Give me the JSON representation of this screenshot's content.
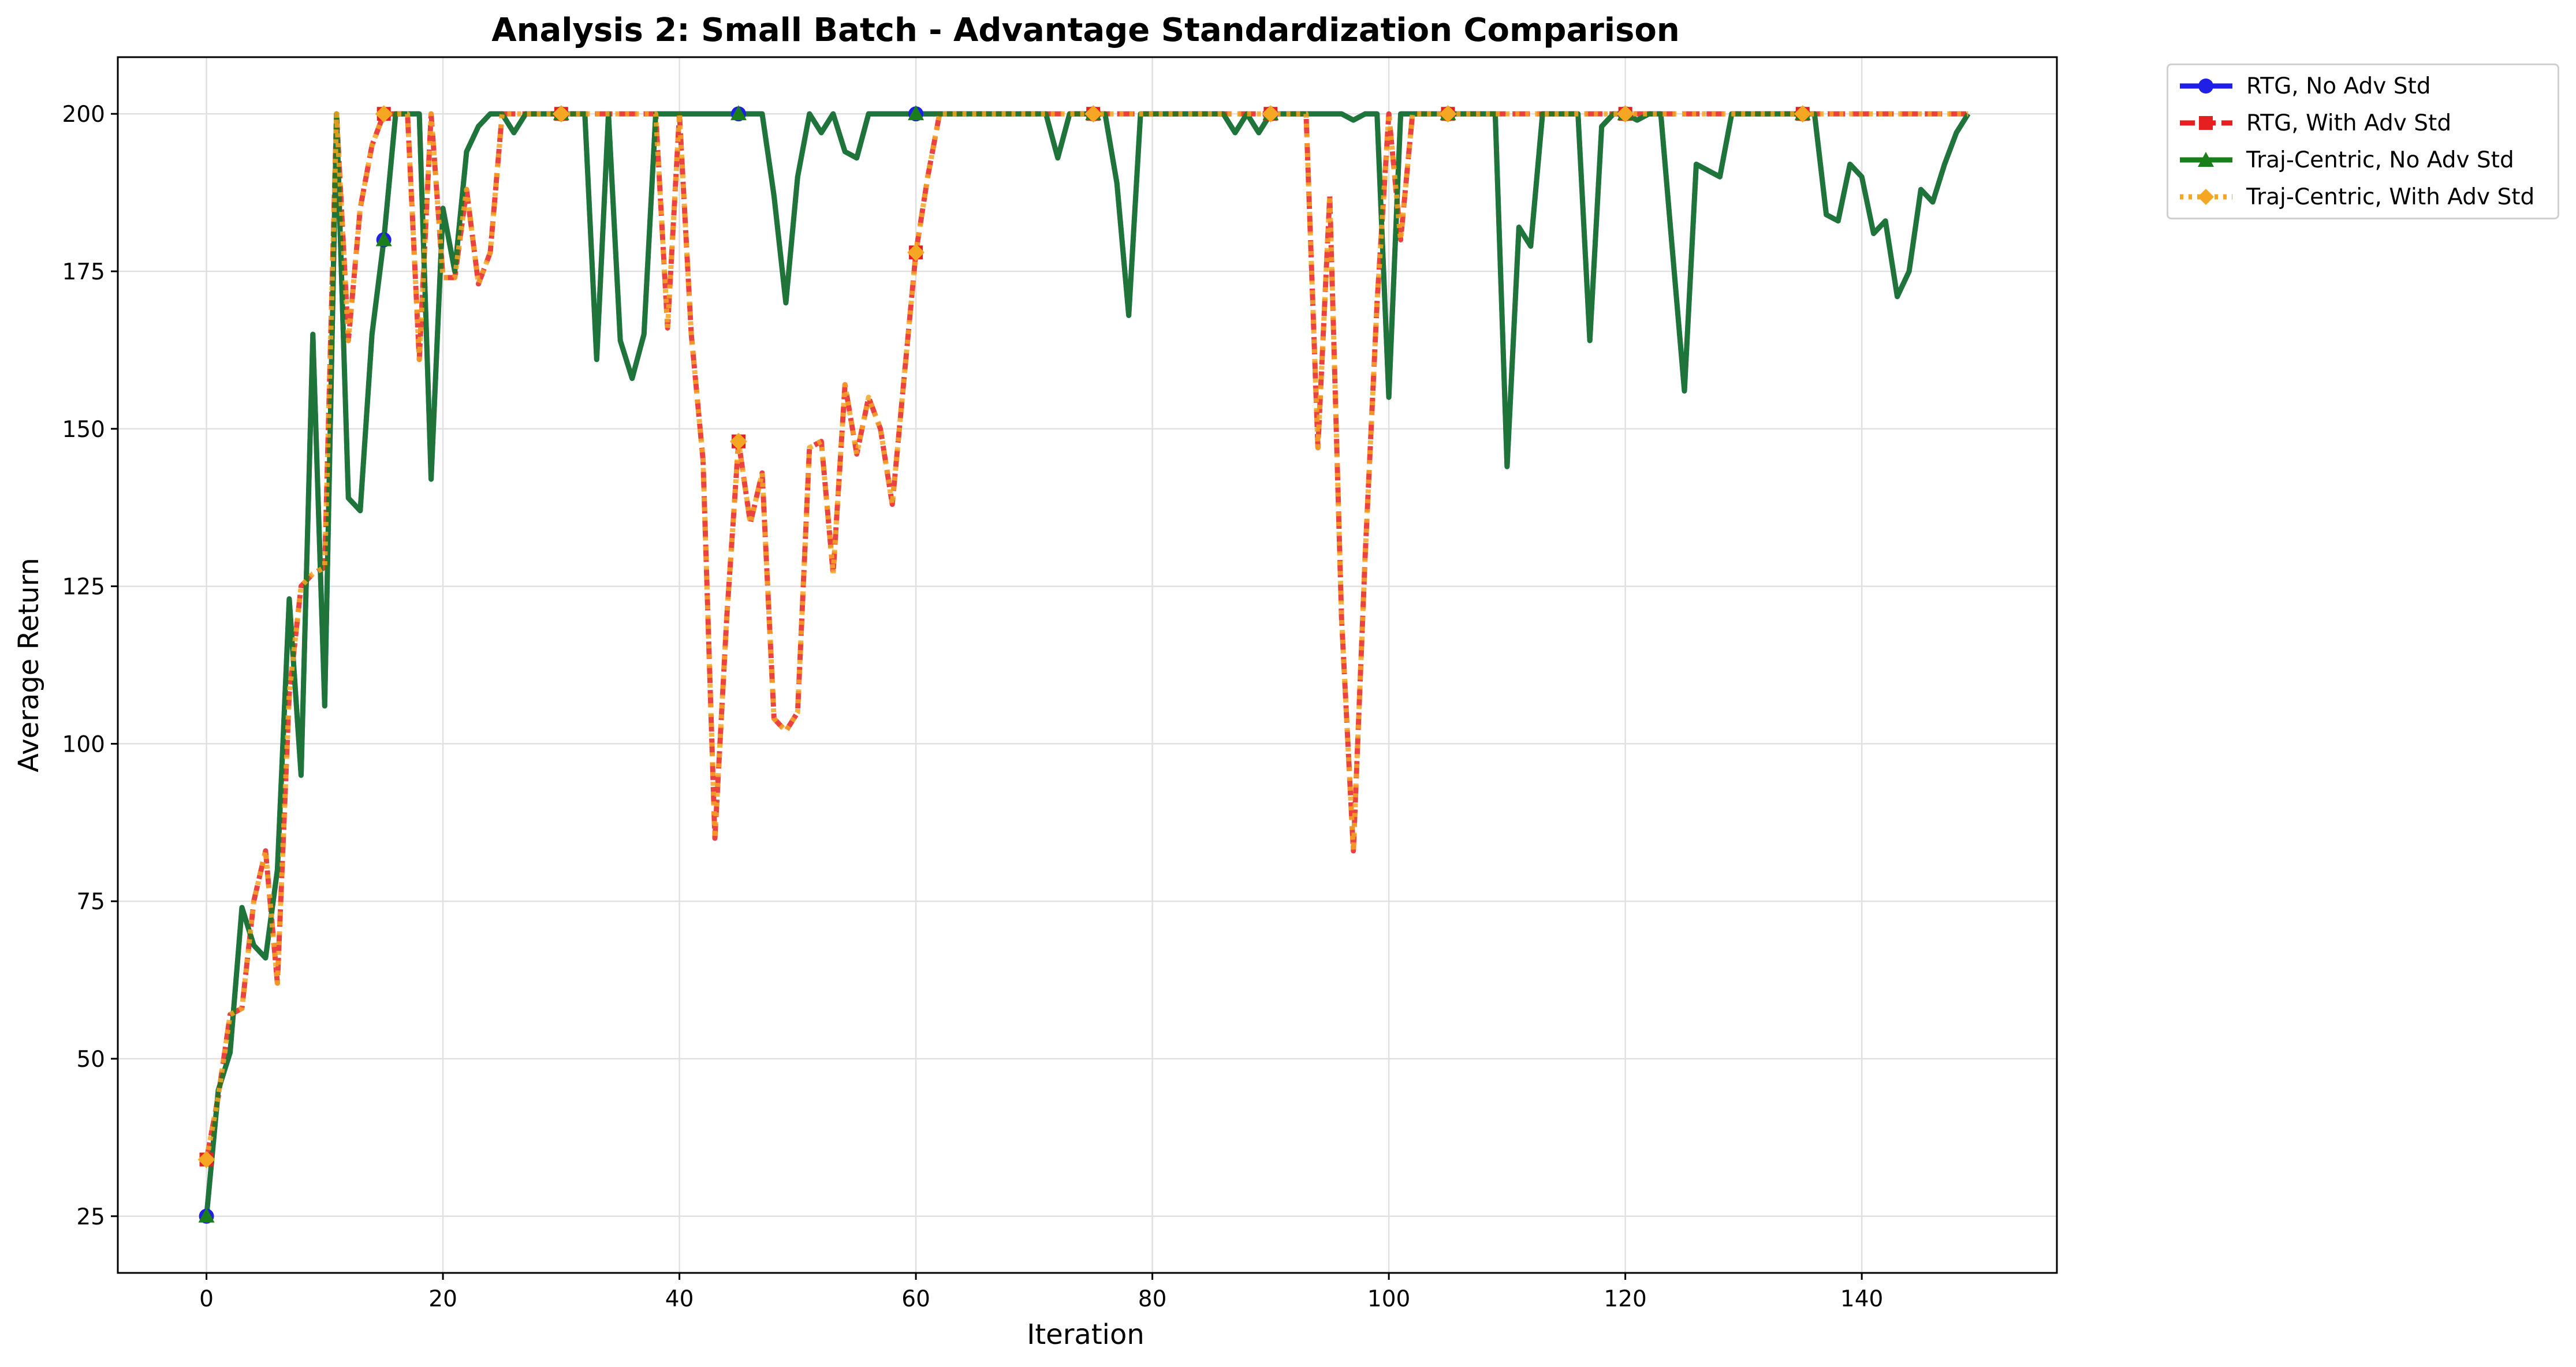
{
  "chart_data": {
    "type": "line",
    "title": "Analysis 2: Small Batch - Advantage Standardization Comparison",
    "xlabel": "Iteration",
    "ylabel": "Average Return",
    "xlim": [
      -7.5,
      156.5
    ],
    "ylim": [
      16,
      209
    ],
    "xticks": [
      0,
      20,
      40,
      60,
      80,
      100,
      120,
      140
    ],
    "yticks": [
      25,
      50,
      75,
      100,
      125,
      150,
      175,
      200
    ],
    "grid": true,
    "legend_position": "outside-top-right",
    "x": [
      0,
      1,
      2,
      3,
      4,
      5,
      6,
      7,
      8,
      9,
      10,
      11,
      12,
      13,
      14,
      15,
      16,
      17,
      18,
      19,
      20,
      21,
      22,
      23,
      24,
      25,
      26,
      27,
      28,
      29,
      30,
      31,
      32,
      33,
      34,
      35,
      36,
      37,
      38,
      39,
      40,
      41,
      42,
      43,
      44,
      45,
      46,
      47,
      48,
      49,
      50,
      51,
      52,
      53,
      54,
      55,
      56,
      57,
      58,
      59,
      60,
      61,
      62,
      63,
      64,
      65,
      66,
      67,
      68,
      69,
      70,
      71,
      72,
      73,
      74,
      75,
      76,
      77,
      78,
      79,
      80,
      81,
      82,
      83,
      84,
      85,
      86,
      87,
      88,
      89,
      90,
      91,
      92,
      93,
      94,
      95,
      96,
      97,
      98,
      99,
      100,
      101,
      102,
      103,
      104,
      105,
      106,
      107,
      108,
      109,
      110,
      111,
      112,
      113,
      114,
      115,
      116,
      117,
      118,
      119,
      120,
      121,
      122,
      123,
      124,
      125,
      126,
      127,
      128,
      129,
      130,
      131,
      132,
      133,
      134,
      135,
      136,
      137,
      138,
      139,
      140,
      141,
      142,
      143,
      144,
      145,
      146,
      147,
      148,
      149
    ],
    "series": [
      {
        "name": "RTG, No Adv Std",
        "color": "#1f1fe6",
        "marker": "circle",
        "linestyle": "solid",
        "values": [
          25,
          45,
          51,
          74,
          68,
          66,
          80,
          123,
          95,
          165,
          106,
          200,
          139,
          137,
          165,
          180,
          200,
          200,
          200,
          142,
          185,
          175,
          194,
          198,
          200,
          200,
          197,
          200,
          200,
          200,
          200,
          200,
          200,
          161,
          200,
          164,
          158,
          165,
          200,
          200,
          200,
          200,
          200,
          200,
          200,
          200,
          200,
          200,
          187,
          170,
          190,
          200,
          197,
          200,
          194,
          193,
          200,
          200,
          200,
          200,
          200,
          200,
          200,
          200,
          200,
          200,
          200,
          200,
          200,
          200,
          200,
          200,
          193,
          200,
          200,
          200,
          200,
          189,
          168,
          200,
          200,
          200,
          200,
          200,
          200,
          200,
          200,
          197,
          200,
          197,
          200,
          200,
          200,
          200,
          200,
          200,
          200,
          199,
          200,
          200,
          155,
          200,
          200,
          200,
          200,
          200,
          200,
          200,
          200,
          200,
          144,
          182,
          179,
          200,
          200,
          200,
          200,
          164,
          198,
          200,
          200,
          199,
          200,
          200,
          178,
          156,
          192,
          191,
          190,
          200,
          200,
          200,
          200,
          200,
          200,
          200,
          200,
          184,
          183,
          192,
          190,
          181,
          183,
          171,
          175,
          188,
          186,
          192,
          197,
          200
        ]
      },
      {
        "name": "RTG, With Adv Std",
        "color": "#e62020",
        "marker": "square",
        "linestyle": "dashed",
        "values": [
          34,
          44,
          57,
          58,
          75,
          83,
          62,
          108,
          125,
          127,
          128,
          200,
          164,
          185,
          195,
          200,
          200,
          200,
          161,
          200,
          174,
          174,
          188,
          173,
          178,
          200,
          200,
          200,
          200,
          200,
          200,
          200,
          200,
          200,
          200,
          200,
          200,
          200,
          200,
          166,
          200,
          165,
          145,
          85,
          120,
          148,
          135,
          143,
          104,
          102,
          105,
          147,
          148,
          127,
          157,
          146,
          155,
          150,
          138,
          158,
          178,
          190,
          200,
          200,
          200,
          200,
          200,
          200,
          200,
          200,
          200,
          200,
          200,
          200,
          200,
          200,
          200,
          200,
          200,
          200,
          200,
          200,
          200,
          200,
          200,
          200,
          200,
          200,
          200,
          200,
          200,
          200,
          200,
          200,
          147,
          187,
          120,
          83,
          130,
          170,
          200,
          180,
          200,
          200,
          200,
          200,
          200,
          200,
          200,
          200,
          200,
          200,
          200,
          200,
          200,
          200,
          200,
          200,
          200,
          200,
          200,
          200,
          200,
          200,
          200,
          200,
          200,
          200,
          200,
          200,
          200,
          200,
          200,
          200,
          200,
          200,
          200,
          200,
          200,
          200,
          200,
          200,
          200,
          200,
          200,
          200,
          200,
          200,
          200,
          200
        ]
      },
      {
        "name": "Traj-Centric, No Adv Std",
        "color": "#1a7f1a",
        "marker": "triangle",
        "linestyle": "solid",
        "values": [
          25,
          45,
          51,
          74,
          68,
          66,
          80,
          123,
          95,
          165,
          106,
          200,
          139,
          137,
          165,
          180,
          200,
          200,
          200,
          142,
          185,
          175,
          194,
          198,
          200,
          200,
          197,
          200,
          200,
          200,
          200,
          200,
          200,
          161,
          200,
          164,
          158,
          165,
          200,
          200,
          200,
          200,
          200,
          200,
          200,
          200,
          200,
          200,
          187,
          170,
          190,
          200,
          197,
          200,
          194,
          193,
          200,
          200,
          200,
          200,
          200,
          200,
          200,
          200,
          200,
          200,
          200,
          200,
          200,
          200,
          200,
          200,
          193,
          200,
          200,
          200,
          200,
          189,
          168,
          200,
          200,
          200,
          200,
          200,
          200,
          200,
          200,
          197,
          200,
          197,
          200,
          200,
          200,
          200,
          200,
          200,
          200,
          199,
          200,
          200,
          155,
          200,
          200,
          200,
          200,
          200,
          200,
          200,
          200,
          200,
          144,
          182,
          179,
          200,
          200,
          200,
          200,
          164,
          198,
          200,
          200,
          199,
          200,
          200,
          178,
          156,
          192,
          191,
          190,
          200,
          200,
          200,
          200,
          200,
          200,
          200,
          200,
          184,
          183,
          192,
          190,
          181,
          183,
          171,
          175,
          188,
          186,
          192,
          197,
          200
        ]
      },
      {
        "name": "Traj-Centric, With Adv Std",
        "color": "#f5a623",
        "marker": "diamond",
        "linestyle": "dotted",
        "values": [
          34,
          44,
          57,
          58,
          75,
          83,
          62,
          108,
          125,
          127,
          128,
          200,
          164,
          185,
          195,
          200,
          200,
          200,
          161,
          200,
          174,
          174,
          188,
          173,
          178,
          200,
          200,
          200,
          200,
          200,
          200,
          200,
          200,
          200,
          200,
          200,
          200,
          200,
          200,
          166,
          200,
          165,
          145,
          85,
          120,
          148,
          135,
          143,
          104,
          102,
          105,
          147,
          148,
          127,
          157,
          146,
          155,
          150,
          138,
          158,
          178,
          190,
          200,
          200,
          200,
          200,
          200,
          200,
          200,
          200,
          200,
          200,
          200,
          200,
          200,
          200,
          200,
          200,
          200,
          200,
          200,
          200,
          200,
          200,
          200,
          200,
          200,
          200,
          200,
          200,
          200,
          200,
          200,
          200,
          147,
          187,
          120,
          83,
          130,
          170,
          200,
          180,
          200,
          200,
          200,
          200,
          200,
          200,
          200,
          200,
          200,
          200,
          200,
          200,
          200,
          200,
          200,
          200,
          200,
          200,
          200,
          200,
          200,
          200,
          200,
          200,
          200,
          200,
          200,
          200,
          200,
          200,
          200,
          200,
          200,
          200,
          200,
          200,
          200,
          200,
          200,
          200,
          200,
          200,
          200,
          200,
          200,
          200,
          200,
          200
        ]
      }
    ]
  }
}
